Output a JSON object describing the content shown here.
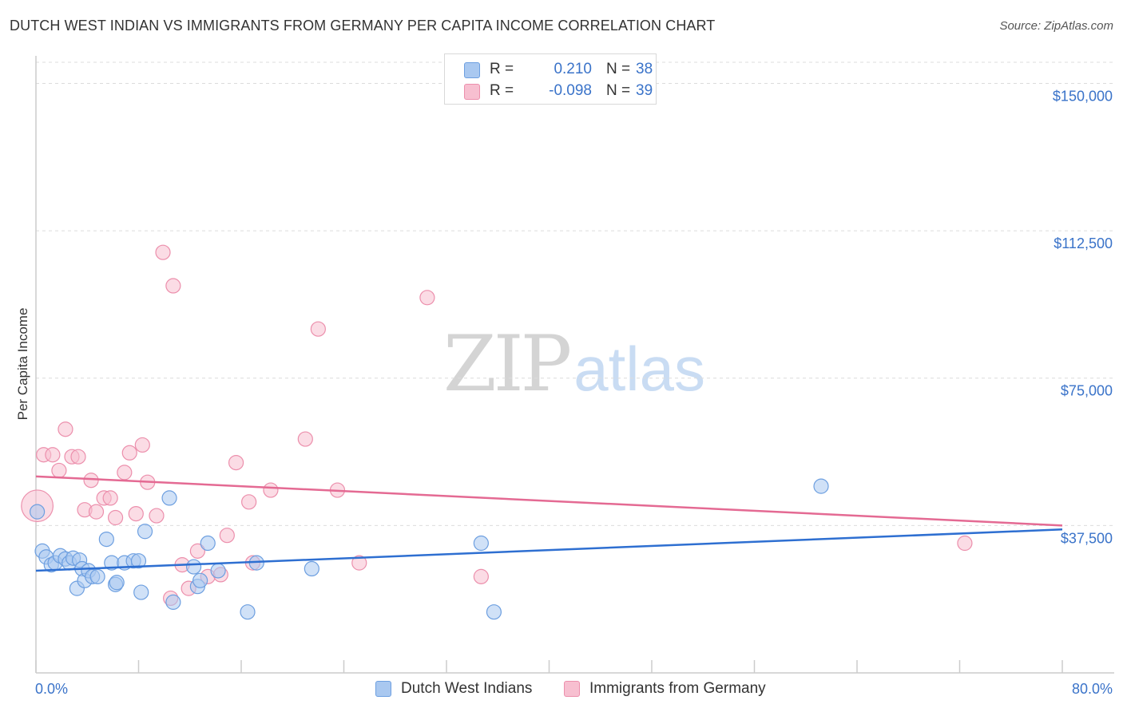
{
  "title": "DUTCH WEST INDIAN VS IMMIGRANTS FROM GERMANY PER CAPITA INCOME CORRELATION CHART",
  "source": "Source: ZipAtlas.com",
  "watermark": {
    "zip": "ZIP",
    "atlas": "atlas"
  },
  "legend": {
    "rows": [
      {
        "r_label": "R =",
        "r_value": "0.210",
        "n_label": "N =",
        "n_value": "38",
        "color": "#a9c8f0",
        "stroke": "#6d9fe0"
      },
      {
        "r_label": "R =",
        "r_value": "-0.098",
        "n_label": "N =",
        "n_value": "39",
        "color": "#f7bfd0",
        "stroke": "#ec8fac"
      }
    ]
  },
  "colors": {
    "blue_fill": "#a9c8f0",
    "blue_stroke": "#6d9fe0",
    "blue_line": "#2e6fd1",
    "pink_fill": "#f7bfd0",
    "pink_stroke": "#ec8fac",
    "pink_line": "#e46a93",
    "grid": "#dcdcdc",
    "axis_text": "#3a73c9"
  },
  "chart_data": {
    "type": "scatter",
    "title": "DUTCH WEST INDIAN VS IMMIGRANTS FROM GERMANY PER CAPITA INCOME CORRELATION CHART",
    "xlabel": "",
    "ylabel": "Per Capita Income",
    "xlim": [
      0,
      80
    ],
    "ylim": [
      0,
      157000
    ],
    "x_tick_labels": [
      "0.0%",
      "80.0%"
    ],
    "y_ticks": [
      37500,
      75000,
      112500,
      150000
    ],
    "y_tick_labels": [
      "$37,500",
      "$75,000",
      "$112,500",
      "$150,000"
    ],
    "grid": true,
    "legend_position": "top-center",
    "series": [
      {
        "name": "Dutch West Indians",
        "r": 0.21,
        "n": 38,
        "trend": {
          "x0": 0,
          "y0": 26000,
          "x1": 80,
          "y1": 36500
        },
        "points": [
          {
            "x": 0.1,
            "y": 41000,
            "s": 1
          },
          {
            "x": 0.5,
            "y": 31000,
            "s": 1
          },
          {
            "x": 0.8,
            "y": 29500,
            "s": 1
          },
          {
            "x": 1.2,
            "y": 27500,
            "s": 1
          },
          {
            "x": 1.5,
            "y": 28000,
            "s": 1
          },
          {
            "x": 1.9,
            "y": 29800,
            "s": 1
          },
          {
            "x": 2.3,
            "y": 29000,
            "s": 1
          },
          {
            "x": 2.6,
            "y": 28000,
            "s": 1
          },
          {
            "x": 2.9,
            "y": 29200,
            "s": 1
          },
          {
            "x": 3.2,
            "y": 21500,
            "s": 1
          },
          {
            "x": 3.4,
            "y": 28700,
            "s": 1
          },
          {
            "x": 3.6,
            "y": 26500,
            "s": 1
          },
          {
            "x": 3.8,
            "y": 23500,
            "s": 1
          },
          {
            "x": 4.1,
            "y": 26000,
            "s": 1
          },
          {
            "x": 4.4,
            "y": 24500,
            "s": 1
          },
          {
            "x": 4.8,
            "y": 24500,
            "s": 1
          },
          {
            "x": 5.5,
            "y": 34000,
            "s": 1
          },
          {
            "x": 5.9,
            "y": 28000,
            "s": 1
          },
          {
            "x": 6.2,
            "y": 22500,
            "s": 1
          },
          {
            "x": 6.3,
            "y": 23000,
            "s": 1
          },
          {
            "x": 6.9,
            "y": 28000,
            "s": 1
          },
          {
            "x": 7.6,
            "y": 28500,
            "s": 1
          },
          {
            "x": 8.0,
            "y": 28500,
            "s": 1
          },
          {
            "x": 8.2,
            "y": 20500,
            "s": 1
          },
          {
            "x": 8.5,
            "y": 36000,
            "s": 1
          },
          {
            "x": 10.4,
            "y": 44500,
            "s": 1
          },
          {
            "x": 10.7,
            "y": 18000,
            "s": 1
          },
          {
            "x": 12.3,
            "y": 27000,
            "s": 1
          },
          {
            "x": 12.6,
            "y": 22000,
            "s": 1
          },
          {
            "x": 12.8,
            "y": 23500,
            "s": 1
          },
          {
            "x": 13.4,
            "y": 33000,
            "s": 1
          },
          {
            "x": 14.2,
            "y": 26000,
            "s": 1
          },
          {
            "x": 16.5,
            "y": 15500,
            "s": 1
          },
          {
            "x": 17.2,
            "y": 28000,
            "s": 1
          },
          {
            "x": 21.5,
            "y": 26500,
            "s": 1
          },
          {
            "x": 34.7,
            "y": 33000,
            "s": 1
          },
          {
            "x": 35.7,
            "y": 15500,
            "s": 1
          },
          {
            "x": 61.2,
            "y": 47500,
            "s": 1
          }
        ]
      },
      {
        "name": "Immigrants from Germany",
        "r": -0.098,
        "n": 39,
        "trend": {
          "x0": 0,
          "y0": 50000,
          "x1": 80,
          "y1": 37500
        },
        "points": [
          {
            "x": 0.1,
            "y": 42500,
            "s": 2.2
          },
          {
            "x": 0.6,
            "y": 55500,
            "s": 1
          },
          {
            "x": 1.3,
            "y": 55500,
            "s": 1
          },
          {
            "x": 1.8,
            "y": 51500,
            "s": 1
          },
          {
            "x": 2.3,
            "y": 62000,
            "s": 1
          },
          {
            "x": 2.8,
            "y": 55000,
            "s": 1
          },
          {
            "x": 3.3,
            "y": 55000,
            "s": 1
          },
          {
            "x": 3.8,
            "y": 41500,
            "s": 1
          },
          {
            "x": 4.3,
            "y": 49000,
            "s": 1
          },
          {
            "x": 4.7,
            "y": 41000,
            "s": 1
          },
          {
            "x": 5.3,
            "y": 44500,
            "s": 1
          },
          {
            "x": 5.8,
            "y": 44500,
            "s": 1
          },
          {
            "x": 6.2,
            "y": 39500,
            "s": 1
          },
          {
            "x": 6.9,
            "y": 51000,
            "s": 1
          },
          {
            "x": 7.3,
            "y": 56000,
            "s": 1
          },
          {
            "x": 7.8,
            "y": 40500,
            "s": 1
          },
          {
            "x": 8.3,
            "y": 58000,
            "s": 1
          },
          {
            "x": 8.7,
            "y": 48500,
            "s": 1
          },
          {
            "x": 9.4,
            "y": 40000,
            "s": 1
          },
          {
            "x": 9.9,
            "y": 107000,
            "s": 1
          },
          {
            "x": 10.5,
            "y": 19000,
            "s": 1
          },
          {
            "x": 10.7,
            "y": 98500,
            "s": 1
          },
          {
            "x": 11.4,
            "y": 27500,
            "s": 1
          },
          {
            "x": 11.9,
            "y": 21500,
            "s": 1
          },
          {
            "x": 12.6,
            "y": 31000,
            "s": 1
          },
          {
            "x": 13.4,
            "y": 24500,
            "s": 1
          },
          {
            "x": 14.4,
            "y": 25000,
            "s": 1
          },
          {
            "x": 14.9,
            "y": 35000,
            "s": 1
          },
          {
            "x": 15.6,
            "y": 53500,
            "s": 1
          },
          {
            "x": 16.6,
            "y": 43500,
            "s": 1
          },
          {
            "x": 16.9,
            "y": 28000,
            "s": 1
          },
          {
            "x": 18.3,
            "y": 46500,
            "s": 1
          },
          {
            "x": 21.0,
            "y": 59500,
            "s": 1
          },
          {
            "x": 22.0,
            "y": 87500,
            "s": 1
          },
          {
            "x": 23.5,
            "y": 46500,
            "s": 1
          },
          {
            "x": 25.2,
            "y": 28000,
            "s": 1
          },
          {
            "x": 30.5,
            "y": 95500,
            "s": 1
          },
          {
            "x": 34.7,
            "y": 24500,
            "s": 1
          },
          {
            "x": 72.4,
            "y": 33000,
            "s": 1
          }
        ]
      }
    ]
  }
}
